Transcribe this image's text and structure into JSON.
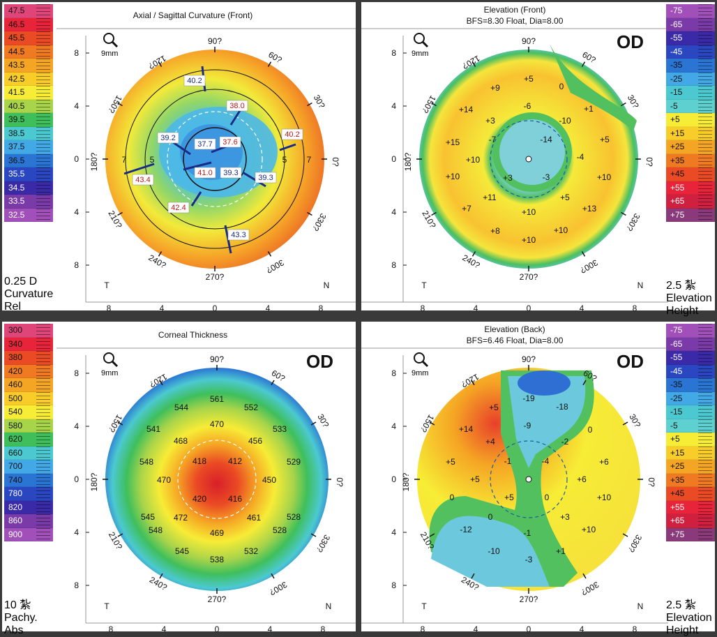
{
  "axial": {
    "title": "Axial / Sagittal Curvature (Front)",
    "zoom": "9mm",
    "scale": [
      "47.5",
      "46.5",
      "45.5",
      "44.5",
      "43.5",
      "42.5",
      "41.5",
      "40.5",
      "39.5",
      "38.5",
      "37.5",
      "36.5",
      "35.5",
      "34.5",
      "33.5",
      "32.5"
    ],
    "scale_colors": [
      "#e0457a",
      "#e8243a",
      "#ea4a24",
      "#f07a22",
      "#f5a524",
      "#f8cd2a",
      "#f7ec36",
      "#a8d44a",
      "#3fbf5c",
      "#4cc9d0",
      "#42a8e6",
      "#2a74d4",
      "#2a46c0",
      "#3a2aa8",
      "#7a3aa8",
      "#a050b8"
    ],
    "footer": [
      "0.25 D",
      "Curvature",
      "Rel"
    ],
    "values": [
      "40.2",
      "38.0",
      "39.2",
      "37.7",
      "37.6",
      "40.2",
      "41.0",
      "39.3",
      "39.3",
      "43.4",
      "42.4",
      "43.3"
    ],
    "ring_labels": [
      "7",
      "5",
      "5",
      "7"
    ]
  },
  "elev_front": {
    "title": "Elevation (Front)",
    "subtitle": "BFS=8.30 Float, Dia=8.00",
    "eye": "OD",
    "zoom": "9mm",
    "values": [
      "+5",
      "+9",
      "0",
      "+14",
      "-6",
      "+1",
      "+3",
      "-10",
      "+15",
      "-7",
      "-14",
      "+5",
      "+10",
      "-4",
      "+10",
      "+3",
      "-3",
      "+10",
      "+11",
      "+5",
      "+7",
      "+13",
      "+10",
      "+8",
      "+10",
      "+10"
    ]
  },
  "thickness": {
    "title": "Corneal Thickness",
    "eye": "OD",
    "zoom": "9mm",
    "scale": [
      "300",
      "340",
      "380",
      "420",
      "460",
      "500",
      "540",
      "580",
      "620",
      "660",
      "700",
      "740",
      "780",
      "820",
      "860",
      "900"
    ],
    "scale_colors": [
      "#e0457a",
      "#e8243a",
      "#ea4a24",
      "#f07a22",
      "#f5a524",
      "#f8cd2a",
      "#f7ec36",
      "#a8d44a",
      "#3fbf5c",
      "#4cc9d0",
      "#42a8e6",
      "#2a74d4",
      "#2a46c0",
      "#3a2aa8",
      "#7a3aa8",
      "#a050b8"
    ],
    "footer": [
      "10 紮",
      "Pachy.",
      "Abs"
    ],
    "values": [
      "561",
      "544",
      "552",
      "470",
      "541",
      "533",
      "468",
      "456",
      "548",
      "418",
      "412",
      "529",
      "470",
      "450",
      "420",
      "416",
      "545",
      "528",
      "472",
      "461",
      "548",
      "469",
      "528",
      "545",
      "532",
      "538"
    ]
  },
  "elev_back": {
    "title": "Elevation (Back)",
    "subtitle": "BFS=6.46 Float, Dia=8.00",
    "eye": "OD",
    "zoom": "9mm",
    "values": [
      "-19",
      "+5",
      "-18",
      "+14",
      "-9",
      "0",
      "+4",
      "-2",
      "+5",
      "-1",
      "-4",
      "+6",
      "+5",
      "+6",
      "0",
      "+5",
      "0",
      "+10",
      "0",
      "+3",
      "-12",
      "-1",
      "+10",
      "-10",
      "+1",
      "-3"
    ]
  },
  "elevation_scale": {
    "scale": [
      "-75",
      "-65",
      "-55",
      "-45",
      "-35",
      "-25",
      "-15",
      "-5",
      "+5",
      "+15",
      "+25",
      "+35",
      "+45",
      "+55",
      "+65",
      "+75"
    ],
    "scale_colors": [
      "#a050b8",
      "#7a3aa8",
      "#3a2aa8",
      "#2a46c0",
      "#2a74d4",
      "#42a8e6",
      "#4cc9d0",
      "#5fd0d0",
      "#f7ec36",
      "#f8cd2a",
      "#f5a524",
      "#f07a22",
      "#ea4a24",
      "#e8243a",
      "#d02040",
      "#8a3a7a"
    ],
    "footer": [
      "2.5 紮",
      "Elevation",
      "Height"
    ]
  },
  "axes": {
    "degrees": [
      "90?",
      "60?",
      "30?",
      "0?",
      "330?",
      "300?",
      "270?",
      "240?",
      "210?",
      "180?",
      "150?",
      "120?"
    ],
    "y_ticks": [
      "8",
      "4",
      "0",
      "4",
      "8"
    ],
    "x_ticks": [
      "8",
      "4",
      "0",
      "4",
      "8"
    ],
    "temporal": "T",
    "nasal": "N"
  }
}
